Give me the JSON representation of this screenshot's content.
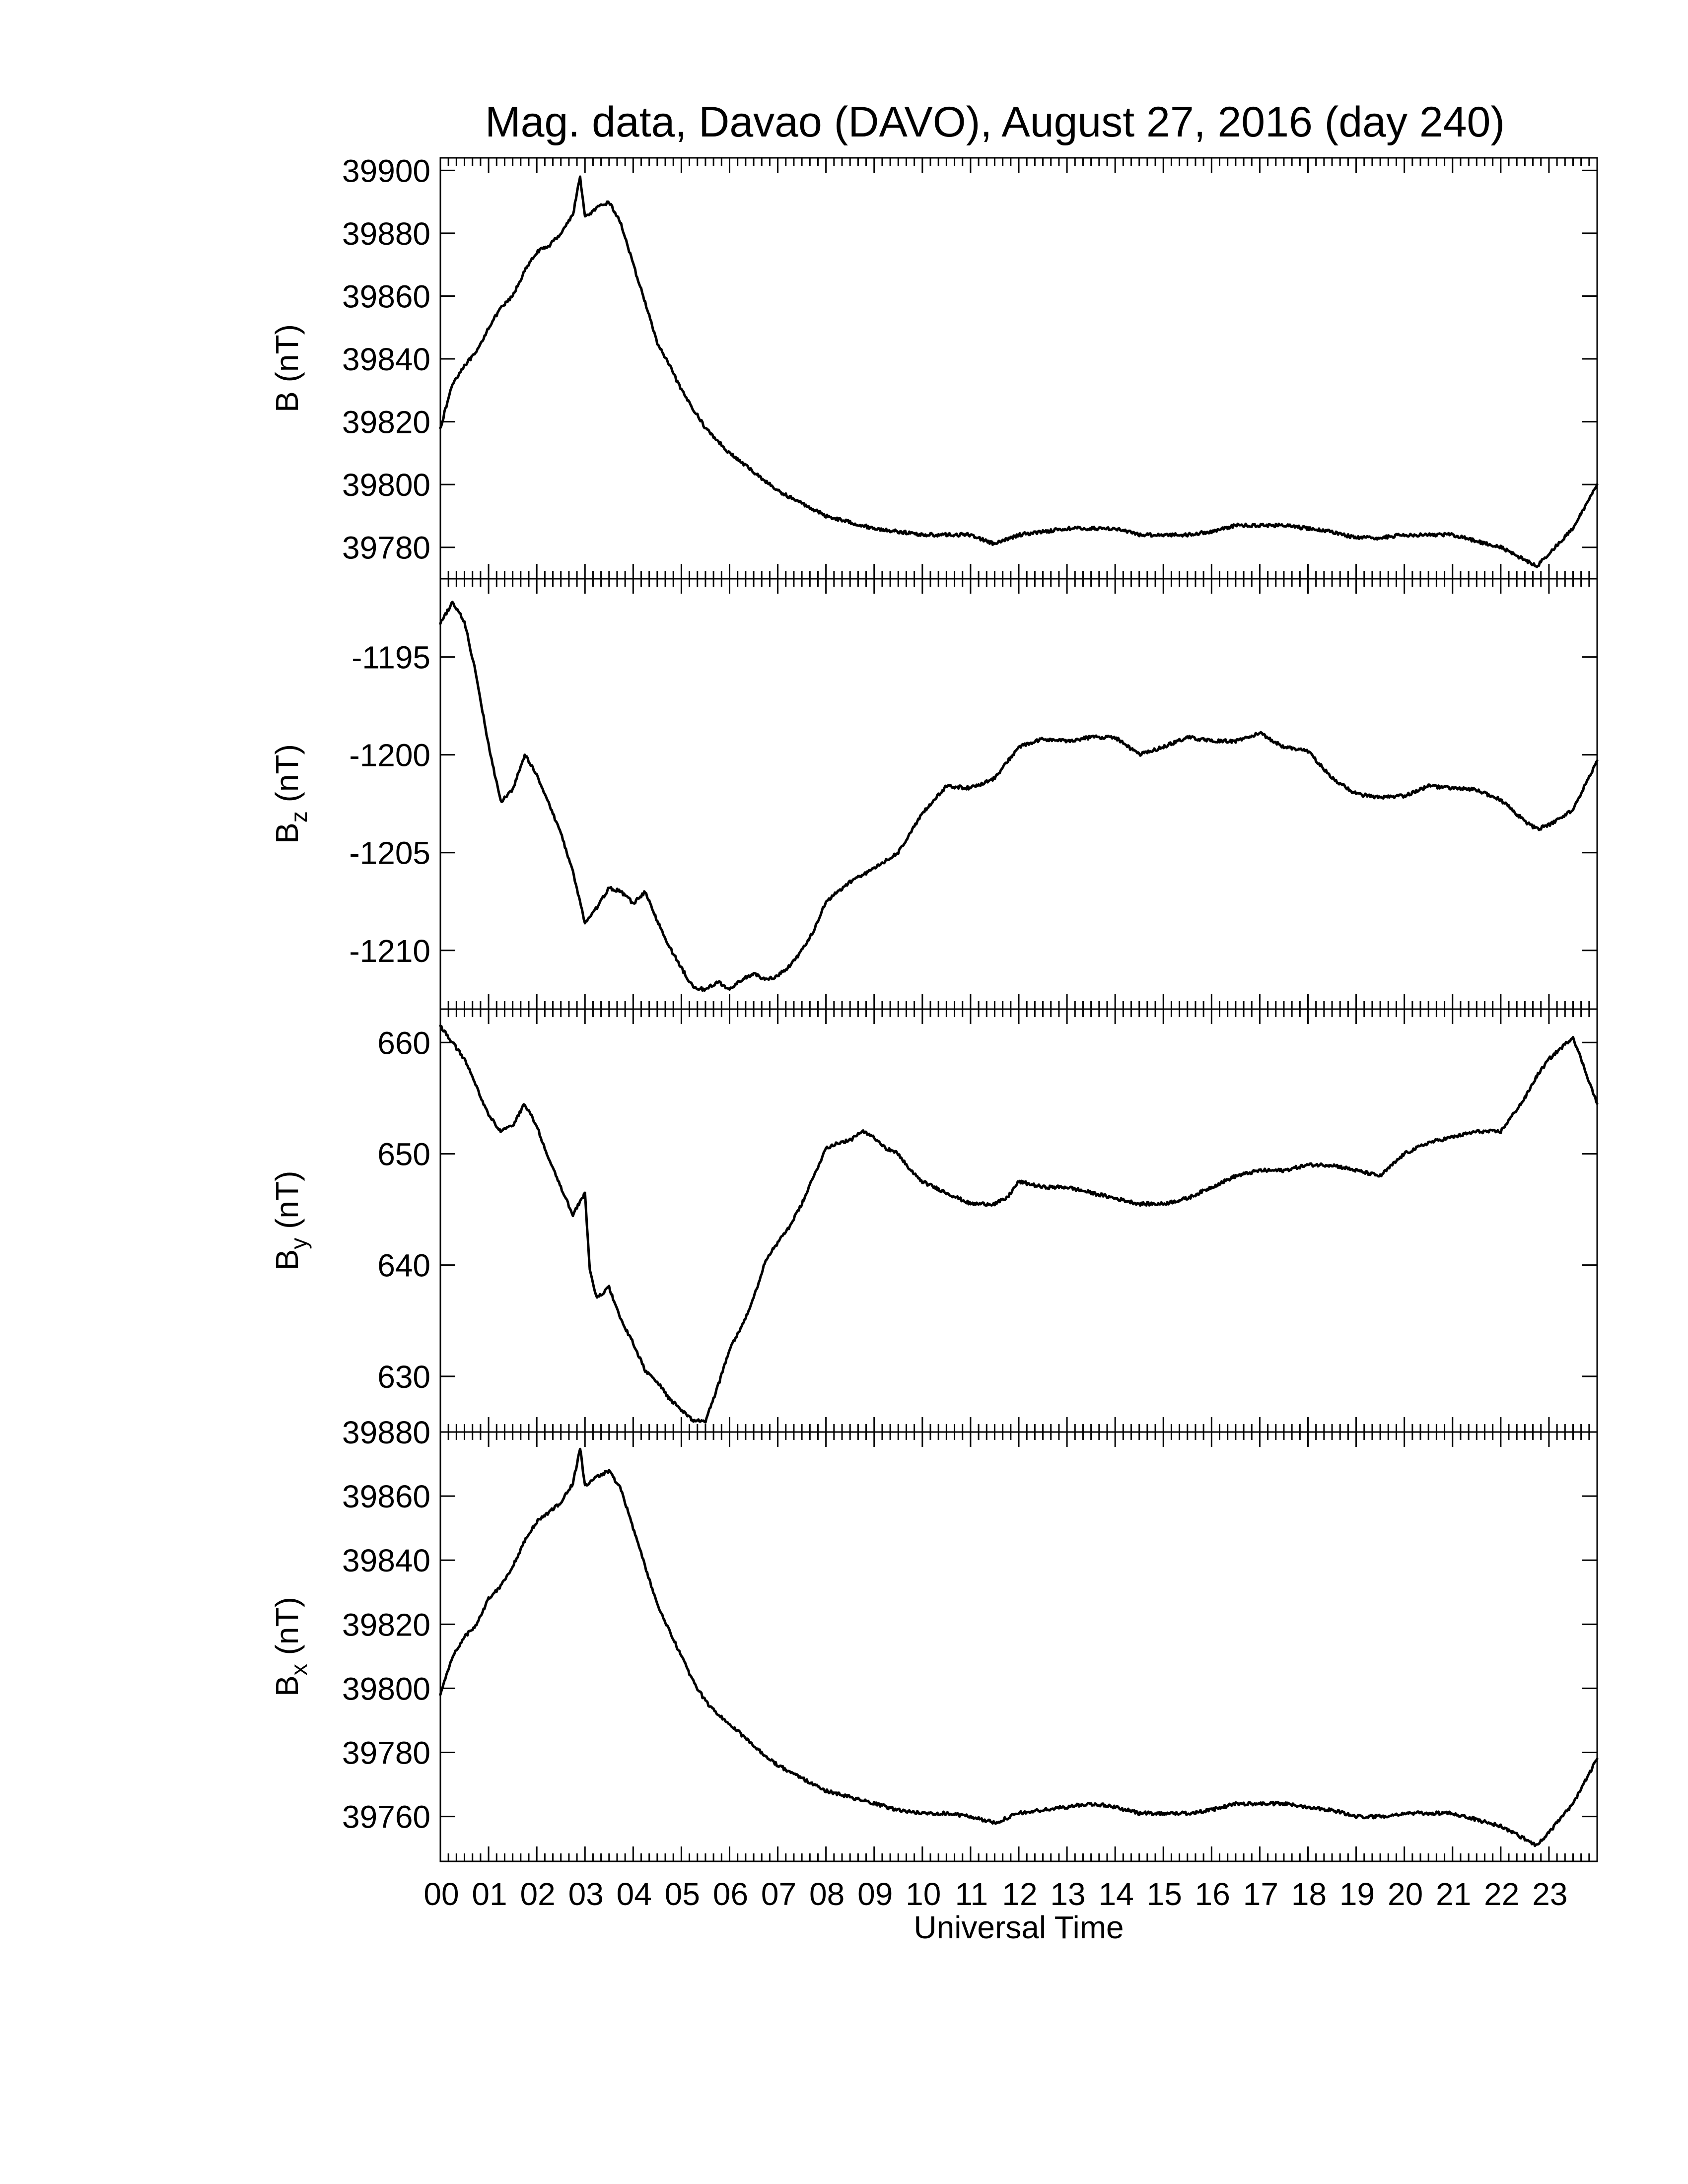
{
  "chart_data": {
    "type": "line",
    "title": "Mag. data, Davao (DAVO), August 27, 2016 (day 240)",
    "xlabel": "Universal Time",
    "x_unit": "hours UT",
    "xlim": [
      0,
      24
    ],
    "x_tick_labels": [
      "00",
      "01",
      "02",
      "03",
      "04",
      "05",
      "06",
      "07",
      "08",
      "09",
      "10",
      "11",
      "12",
      "13",
      "14",
      "15",
      "16",
      "17",
      "18",
      "19",
      "20",
      "21",
      "22",
      "23"
    ],
    "panels": [
      {
        "id": "B",
        "ylabel": {
          "main": "B",
          "sub": "",
          "unit": " (nT)"
        },
        "ylim": [
          39770,
          39904
        ],
        "yticks": [
          39780,
          39800,
          39820,
          39840,
          39860,
          39880,
          39900
        ],
        "x": [
          0,
          0.25,
          0.5,
          0.75,
          1,
          1.25,
          1.5,
          1.75,
          2,
          2.25,
          2.5,
          2.75,
          2.9,
          3,
          3.25,
          3.5,
          3.75,
          4,
          4.25,
          4.5,
          4.75,
          5,
          5.25,
          5.5,
          5.75,
          6,
          6.5,
          7,
          7.5,
          8,
          8.5,
          9,
          9.5,
          10,
          10.5,
          11,
          11.5,
          12,
          12.5,
          13,
          13.5,
          14,
          14.5,
          15,
          15.5,
          16,
          16.5,
          17,
          17.5,
          18,
          18.5,
          19,
          19.5,
          20,
          20.5,
          21,
          21.5,
          22,
          22.5,
          22.75,
          23,
          23.5,
          24
        ],
        "values": [
          39818,
          39832,
          39838,
          39842,
          39850,
          39856,
          39860,
          39868,
          39874,
          39876,
          39880,
          39886,
          39898,
          39885,
          39888,
          39890,
          39883,
          39870,
          39858,
          39845,
          39838,
          39830,
          39824,
          39818,
          39814,
          39810,
          39804,
          39798,
          39794,
          39790,
          39788,
          39786,
          39785,
          39784,
          39784,
          39784,
          39781,
          39784,
          39785,
          39786,
          39786,
          39786,
          39784,
          39784,
          39784,
          39785,
          39787,
          39787,
          39787,
          39786,
          39785,
          39783,
          39783,
          39784,
          39784,
          39784,
          39782,
          39780,
          39776,
          39774,
          39778,
          39786,
          39800
        ]
      },
      {
        "id": "Bz",
        "ylabel": {
          "main": "B",
          "sub": "z",
          "unit": " (nT)"
        },
        "ylim": [
          -1213,
          -1191
        ],
        "yticks": [
          -1195,
          -1200,
          -1205,
          -1210
        ],
        "x": [
          0,
          0.25,
          0.5,
          0.75,
          1,
          1.25,
          1.5,
          1.75,
          2,
          2.25,
          2.5,
          2.75,
          3,
          3.25,
          3.5,
          3.75,
          4,
          4.25,
          4.5,
          4.75,
          5,
          5.25,
          5.5,
          5.75,
          6,
          6.25,
          6.5,
          6.75,
          7,
          7.25,
          7.5,
          7.75,
          8,
          8.5,
          9,
          9.5,
          10,
          10.5,
          11,
          11.5,
          12,
          12.5,
          13,
          13.5,
          14,
          14.5,
          15,
          15.5,
          16,
          16.5,
          17,
          17.5,
          18,
          18.5,
          19,
          19.5,
          20,
          20.5,
          21,
          21.5,
          22,
          22.5,
          22.75,
          23,
          23.5,
          24
        ],
        "values": [
          -1193.3,
          -1192.2,
          -1193.2,
          -1196.0,
          -1199.5,
          -1202.4,
          -1201.8,
          -1200.0,
          -1201.0,
          -1202.5,
          -1204.0,
          -1206.0,
          -1208.6,
          -1207.8,
          -1206.8,
          -1207.0,
          -1207.6,
          -1207.0,
          -1208.5,
          -1209.8,
          -1210.9,
          -1211.9,
          -1212.0,
          -1211.6,
          -1212.0,
          -1211.5,
          -1211.2,
          -1211.5,
          -1211.3,
          -1210.8,
          -1210.0,
          -1209.0,
          -1207.5,
          -1206.5,
          -1205.8,
          -1205.0,
          -1203.0,
          -1201.6,
          -1201.7,
          -1201.2,
          -1199.6,
          -1199.2,
          -1199.3,
          -1199.1,
          -1199.1,
          -1200.0,
          -1199.6,
          -1199.1,
          -1199.3,
          -1199.3,
          -1198.9,
          -1199.6,
          -1199.8,
          -1201.2,
          -1202.0,
          -1202.2,
          -1202.1,
          -1201.6,
          -1201.7,
          -1201.8,
          -1202.3,
          -1203.4,
          -1203.8,
          -1203.6,
          -1202.8,
          -1200.3
        ]
      },
      {
        "id": "By",
        "ylabel": {
          "main": "B",
          "sub": "y",
          "unit": " (nT)"
        },
        "ylim": [
          625,
          663
        ],
        "yticks": [
          630,
          640,
          650,
          660
        ],
        "x": [
          0,
          0.25,
          0.5,
          0.75,
          1,
          1.25,
          1.5,
          1.75,
          2,
          2.25,
          2.5,
          2.75,
          3,
          3.1,
          3.25,
          3.5,
          3.75,
          4,
          4.25,
          4.5,
          4.75,
          5,
          5.25,
          5.5,
          5.75,
          6,
          6.25,
          6.5,
          6.75,
          7,
          7.25,
          7.5,
          7.75,
          8,
          8.25,
          8.5,
          8.75,
          9,
          9.25,
          9.5,
          9.75,
          10,
          10.5,
          11,
          11.5,
          11.75,
          12,
          12.5,
          13,
          13.5,
          14,
          14.5,
          15,
          15.5,
          16,
          16.5,
          17,
          17.5,
          18,
          18.5,
          19,
          19.5,
          20,
          20.5,
          21,
          21.5,
          22,
          22.5,
          22.75,
          23,
          23.5,
          24
        ],
        "values": [
          661.5,
          660.0,
          658.5,
          656.0,
          653.5,
          652.0,
          652.5,
          654.5,
          652.5,
          649.5,
          647.0,
          644.5,
          646.5,
          639.5,
          637.0,
          638.0,
          635.0,
          633.0,
          630.5,
          629.5,
          628.0,
          627.0,
          626.0,
          626.0,
          629.0,
          632.5,
          634.5,
          637.0,
          640.5,
          642.0,
          643.5,
          645.5,
          648.0,
          650.5,
          651.0,
          651.2,
          652.0,
          651.5,
          650.5,
          650.0,
          648.5,
          647.5,
          646.5,
          645.5,
          645.5,
          646.0,
          647.5,
          647.0,
          647.0,
          646.5,
          646.0,
          645.5,
          645.5,
          646.0,
          647.0,
          648.0,
          648.5,
          648.5,
          649.0,
          649.0,
          648.5,
          648.0,
          650.0,
          651.0,
          651.5,
          652.0,
          652.0,
          655.0,
          657.0,
          658.5,
          660.5,
          654.5
        ]
      },
      {
        "id": "Bx",
        "ylabel": {
          "main": "B",
          "sub": "x",
          "unit": " (nT)"
        },
        "ylim": [
          39746,
          39880
        ],
        "yticks": [
          39760,
          39780,
          39800,
          39820,
          39840,
          39860,
          39880
        ],
        "x": [
          0,
          0.25,
          0.5,
          0.75,
          1,
          1.25,
          1.5,
          1.75,
          2,
          2.25,
          2.5,
          2.75,
          2.9,
          3,
          3.25,
          3.5,
          3.75,
          4,
          4.25,
          4.5,
          4.75,
          5,
          5.25,
          5.5,
          5.75,
          6,
          6.5,
          7,
          7.5,
          8,
          8.5,
          9,
          9.5,
          10,
          10.5,
          11,
          11.5,
          12,
          12.5,
          13,
          13.5,
          14,
          14.5,
          15,
          15.5,
          16,
          16.5,
          17,
          17.5,
          18,
          18.5,
          19,
          19.5,
          20,
          20.5,
          21,
          21.5,
          22,
          22.5,
          22.75,
          23,
          23.5,
          24
        ],
        "values": [
          39798,
          39810,
          39816,
          39820,
          39828,
          39832,
          39838,
          39846,
          39852,
          39855,
          39858,
          39864,
          39875,
          39863,
          39866,
          39868,
          39862,
          39850,
          39838,
          39826,
          39818,
          39810,
          39802,
          39796,
          39792,
          39789,
          39782,
          39776,
          39772,
          39768,
          39766,
          39764,
          39762,
          39761,
          39761,
          39760,
          39758,
          39761,
          39762,
          39763,
          39764,
          39763,
          39761,
          39761,
          39761,
          39762,
          39764,
          39764,
          39764,
          39763,
          39762,
          39760,
          39760,
          39761,
          39761,
          39761,
          39759,
          39757,
          39753,
          39751,
          39755,
          39764,
          39778
        ]
      }
    ]
  }
}
